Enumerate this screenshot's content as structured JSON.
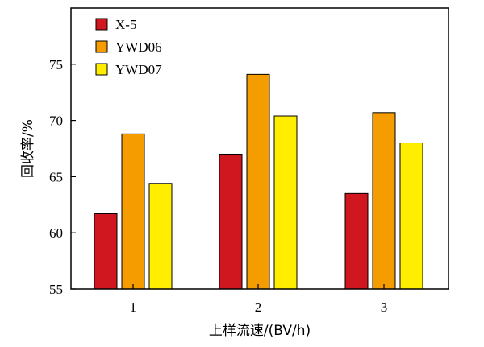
{
  "chart_data": {
    "type": "bar",
    "title": "",
    "xlabel": "上样流速/(BV/h)",
    "ylabel": "回收率/%",
    "categories": [
      "1",
      "2",
      "3"
    ],
    "ylim": [
      55,
      80
    ],
    "yticks": [
      55,
      60,
      65,
      70,
      75
    ],
    "legend_position": "top-left",
    "grid": false,
    "series": [
      {
        "name": "X-5",
        "color": "#d0161e",
        "values": [
          61.7,
          67.0,
          63.5
        ]
      },
      {
        "name": "YWD06",
        "color": "#f59c00",
        "values": [
          68.8,
          74.1,
          70.7
        ]
      },
      {
        "name": "YWD07",
        "color": "#ffee00",
        "values": [
          64.4,
          70.4,
          68.0
        ]
      }
    ]
  }
}
